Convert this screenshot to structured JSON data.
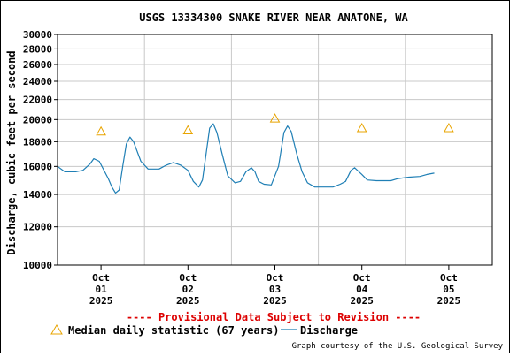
{
  "chart_data": {
    "type": "line",
    "title": "USGS 13334300 SNAKE RIVER NEAR ANATONE, WA",
    "ylabel": "Discharge, cubic feet per second",
    "xlabel": "",
    "y_scale": "log",
    "ylim": [
      10000,
      30000
    ],
    "y_ticks": [
      10000,
      12000,
      14000,
      16000,
      18000,
      20000,
      22000,
      24000,
      26000,
      28000,
      30000
    ],
    "xlim": [
      "2025-09-30T12:00",
      "2025-10-05T12:00"
    ],
    "x_ticks": [
      {
        "at": "2025-10-01T00:00",
        "label": [
          "Oct",
          "01",
          "2025"
        ]
      },
      {
        "at": "2025-10-02T00:00",
        "label": [
          "Oct",
          "02",
          "2025"
        ]
      },
      {
        "at": "2025-10-03T00:00",
        "label": [
          "Oct",
          "03",
          "2025"
        ]
      },
      {
        "at": "2025-10-04T00:00",
        "label": [
          "Oct",
          "04",
          "2025"
        ]
      },
      {
        "at": "2025-10-05T00:00",
        "label": [
          "Oct",
          "05",
          "2025"
        ]
      }
    ],
    "grid": true,
    "legend_position": "bottom",
    "annotation": "---- Provisional Data Subject to Revision ----",
    "credit": "Graph courtesy of the U.S. Geological Survey",
    "series": [
      {
        "name": "Median daily statistic (67 years)",
        "marker": "triangle",
        "color": "#e8a400",
        "points": [
          {
            "x": "2025-10-01T00:00",
            "y": 18900
          },
          {
            "x": "2025-10-02T00:00",
            "y": 19000
          },
          {
            "x": "2025-10-03T00:00",
            "y": 20100
          },
          {
            "x": "2025-10-04T00:00",
            "y": 19200
          },
          {
            "x": "2025-10-05T00:00",
            "y": 19200
          }
        ]
      },
      {
        "name": "Discharge",
        "color": "#1f7fb5",
        "points": [
          {
            "x": "2025-09-30T12:00",
            "y": 16000
          },
          {
            "x": "2025-09-30T14:00",
            "y": 15600
          },
          {
            "x": "2025-09-30T17:00",
            "y": 15600
          },
          {
            "x": "2025-09-30T19:00",
            "y": 15700
          },
          {
            "x": "2025-09-30T21:00",
            "y": 16200
          },
          {
            "x": "2025-09-30T22:00",
            "y": 16600
          },
          {
            "x": "2025-09-30T23:30",
            "y": 16400
          },
          {
            "x": "2025-10-01T02:00",
            "y": 15100
          },
          {
            "x": "2025-10-01T03:00",
            "y": 14500
          },
          {
            "x": "2025-10-01T04:00",
            "y": 14100
          },
          {
            "x": "2025-10-01T05:00",
            "y": 14300
          },
          {
            "x": "2025-10-01T06:00",
            "y": 16000
          },
          {
            "x": "2025-10-01T07:00",
            "y": 17800
          },
          {
            "x": "2025-10-01T08:00",
            "y": 18400
          },
          {
            "x": "2025-10-01T09:00",
            "y": 18000
          },
          {
            "x": "2025-10-01T11:00",
            "y": 16400
          },
          {
            "x": "2025-10-01T13:00",
            "y": 15800
          },
          {
            "x": "2025-10-01T16:00",
            "y": 15800
          },
          {
            "x": "2025-10-01T18:00",
            "y": 16100
          },
          {
            "x": "2025-10-01T20:00",
            "y": 16300
          },
          {
            "x": "2025-10-01T22:00",
            "y": 16100
          },
          {
            "x": "2025-10-02T00:00",
            "y": 15700
          },
          {
            "x": "2025-10-02T01:30",
            "y": 14900
          },
          {
            "x": "2025-10-02T03:00",
            "y": 14500
          },
          {
            "x": "2025-10-02T04:00",
            "y": 15000
          },
          {
            "x": "2025-10-02T05:00",
            "y": 17000
          },
          {
            "x": "2025-10-02T06:00",
            "y": 19200
          },
          {
            "x": "2025-10-02T07:00",
            "y": 19600
          },
          {
            "x": "2025-10-02T08:00",
            "y": 18800
          },
          {
            "x": "2025-10-02T09:30",
            "y": 16900
          },
          {
            "x": "2025-10-02T11:00",
            "y": 15300
          },
          {
            "x": "2025-10-02T13:00",
            "y": 14800
          },
          {
            "x": "2025-10-02T14:30",
            "y": 14900
          },
          {
            "x": "2025-10-02T16:00",
            "y": 15600
          },
          {
            "x": "2025-10-02T17:30",
            "y": 15900
          },
          {
            "x": "2025-10-02T18:30",
            "y": 15600
          },
          {
            "x": "2025-10-02T19:30",
            "y": 14900
          },
          {
            "x": "2025-10-02T21:00",
            "y": 14700
          },
          {
            "x": "2025-10-02T23:00",
            "y": 14650
          },
          {
            "x": "2025-10-03T01:00",
            "y": 16000
          },
          {
            "x": "2025-10-03T02:30",
            "y": 18800
          },
          {
            "x": "2025-10-03T03:30",
            "y": 19400
          },
          {
            "x": "2025-10-03T04:30",
            "y": 18900
          },
          {
            "x": "2025-10-03T06:00",
            "y": 17000
          },
          {
            "x": "2025-10-03T07:30",
            "y": 15600
          },
          {
            "x": "2025-10-03T09:00",
            "y": 14800
          },
          {
            "x": "2025-10-03T11:00",
            "y": 14500
          },
          {
            "x": "2025-10-03T14:00",
            "y": 14500
          },
          {
            "x": "2025-10-03T16:00",
            "y": 14500
          },
          {
            "x": "2025-10-03T18:00",
            "y": 14700
          },
          {
            "x": "2025-10-03T19:30",
            "y": 14900
          },
          {
            "x": "2025-10-03T21:00",
            "y": 15700
          },
          {
            "x": "2025-10-03T22:00",
            "y": 15900
          },
          {
            "x": "2025-10-04T00:00",
            "y": 15400
          },
          {
            "x": "2025-10-04T01:30",
            "y": 15000
          },
          {
            "x": "2025-10-04T04:00",
            "y": 14950
          },
          {
            "x": "2025-10-04T08:00",
            "y": 14950
          },
          {
            "x": "2025-10-04T10:00",
            "y": 15100
          },
          {
            "x": "2025-10-04T13:00",
            "y": 15200
          },
          {
            "x": "2025-10-04T16:00",
            "y": 15250
          },
          {
            "x": "2025-10-04T18:00",
            "y": 15400
          },
          {
            "x": "2025-10-04T20:00",
            "y": 15500
          }
        ]
      }
    ]
  }
}
